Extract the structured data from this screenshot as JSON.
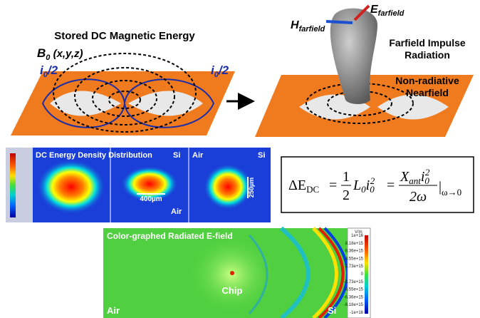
{
  "top_left": {
    "title": "Stored DC Magnetic Energy",
    "field_label": {
      "symbol": "B",
      "sub": "0",
      "args": " (x,y,z)"
    },
    "current_left": {
      "symbol": "i",
      "sub": "0",
      "suffix": "/2"
    },
    "current_right": {
      "symbol": "i",
      "sub": "0",
      "suffix": "/2"
    }
  },
  "top_right": {
    "h_label": {
      "symbol": "H",
      "sub": "farfield"
    },
    "e_label": {
      "symbol": "E",
      "sub": "farfield"
    },
    "radiation": [
      "Farfield Impulse",
      "Radiation"
    ],
    "nearfield": [
      "Non-radiative",
      "Nearfield"
    ]
  },
  "energy_maps": {
    "title": "DC Energy Density Distribution",
    "panel1": {
      "corner": "Si"
    },
    "panel2": {
      "scale": "400µm",
      "bottom": "Air"
    },
    "panel3": {
      "left": "Air",
      "right": "Si",
      "scale": "250µm"
    }
  },
  "equation": {
    "lhs": "ΔE",
    "lhs_sub": "DC",
    "eq1": "=",
    "num1": "1",
    "den1": "2",
    "l": "L",
    "l_sub": "0",
    "i": "i",
    "i_sub": "0",
    "i_sup": "2",
    "eq2": "=",
    "x": "X",
    "x_sub": "ant",
    "i2": "i",
    "i2_sub": "0",
    "i2_sup": "2",
    "den2": "2ω",
    "bar": "|",
    "limit": "ω→0"
  },
  "efield": {
    "title": "Color-graphed Radiated E-field",
    "chip": "Chip",
    "left": "Air",
    "right": "Si",
    "colorbar_unit": "V/m",
    "colorbar_labels": [
      "1e+16",
      "8.18e+15",
      "6.36e+15",
      "4.55e+15",
      "2.73e+15",
      "0",
      "-2.73e+15",
      "-4.55e+15",
      "-6.36e+15",
      "-8.18e+15",
      "-1e+16"
    ]
  }
}
